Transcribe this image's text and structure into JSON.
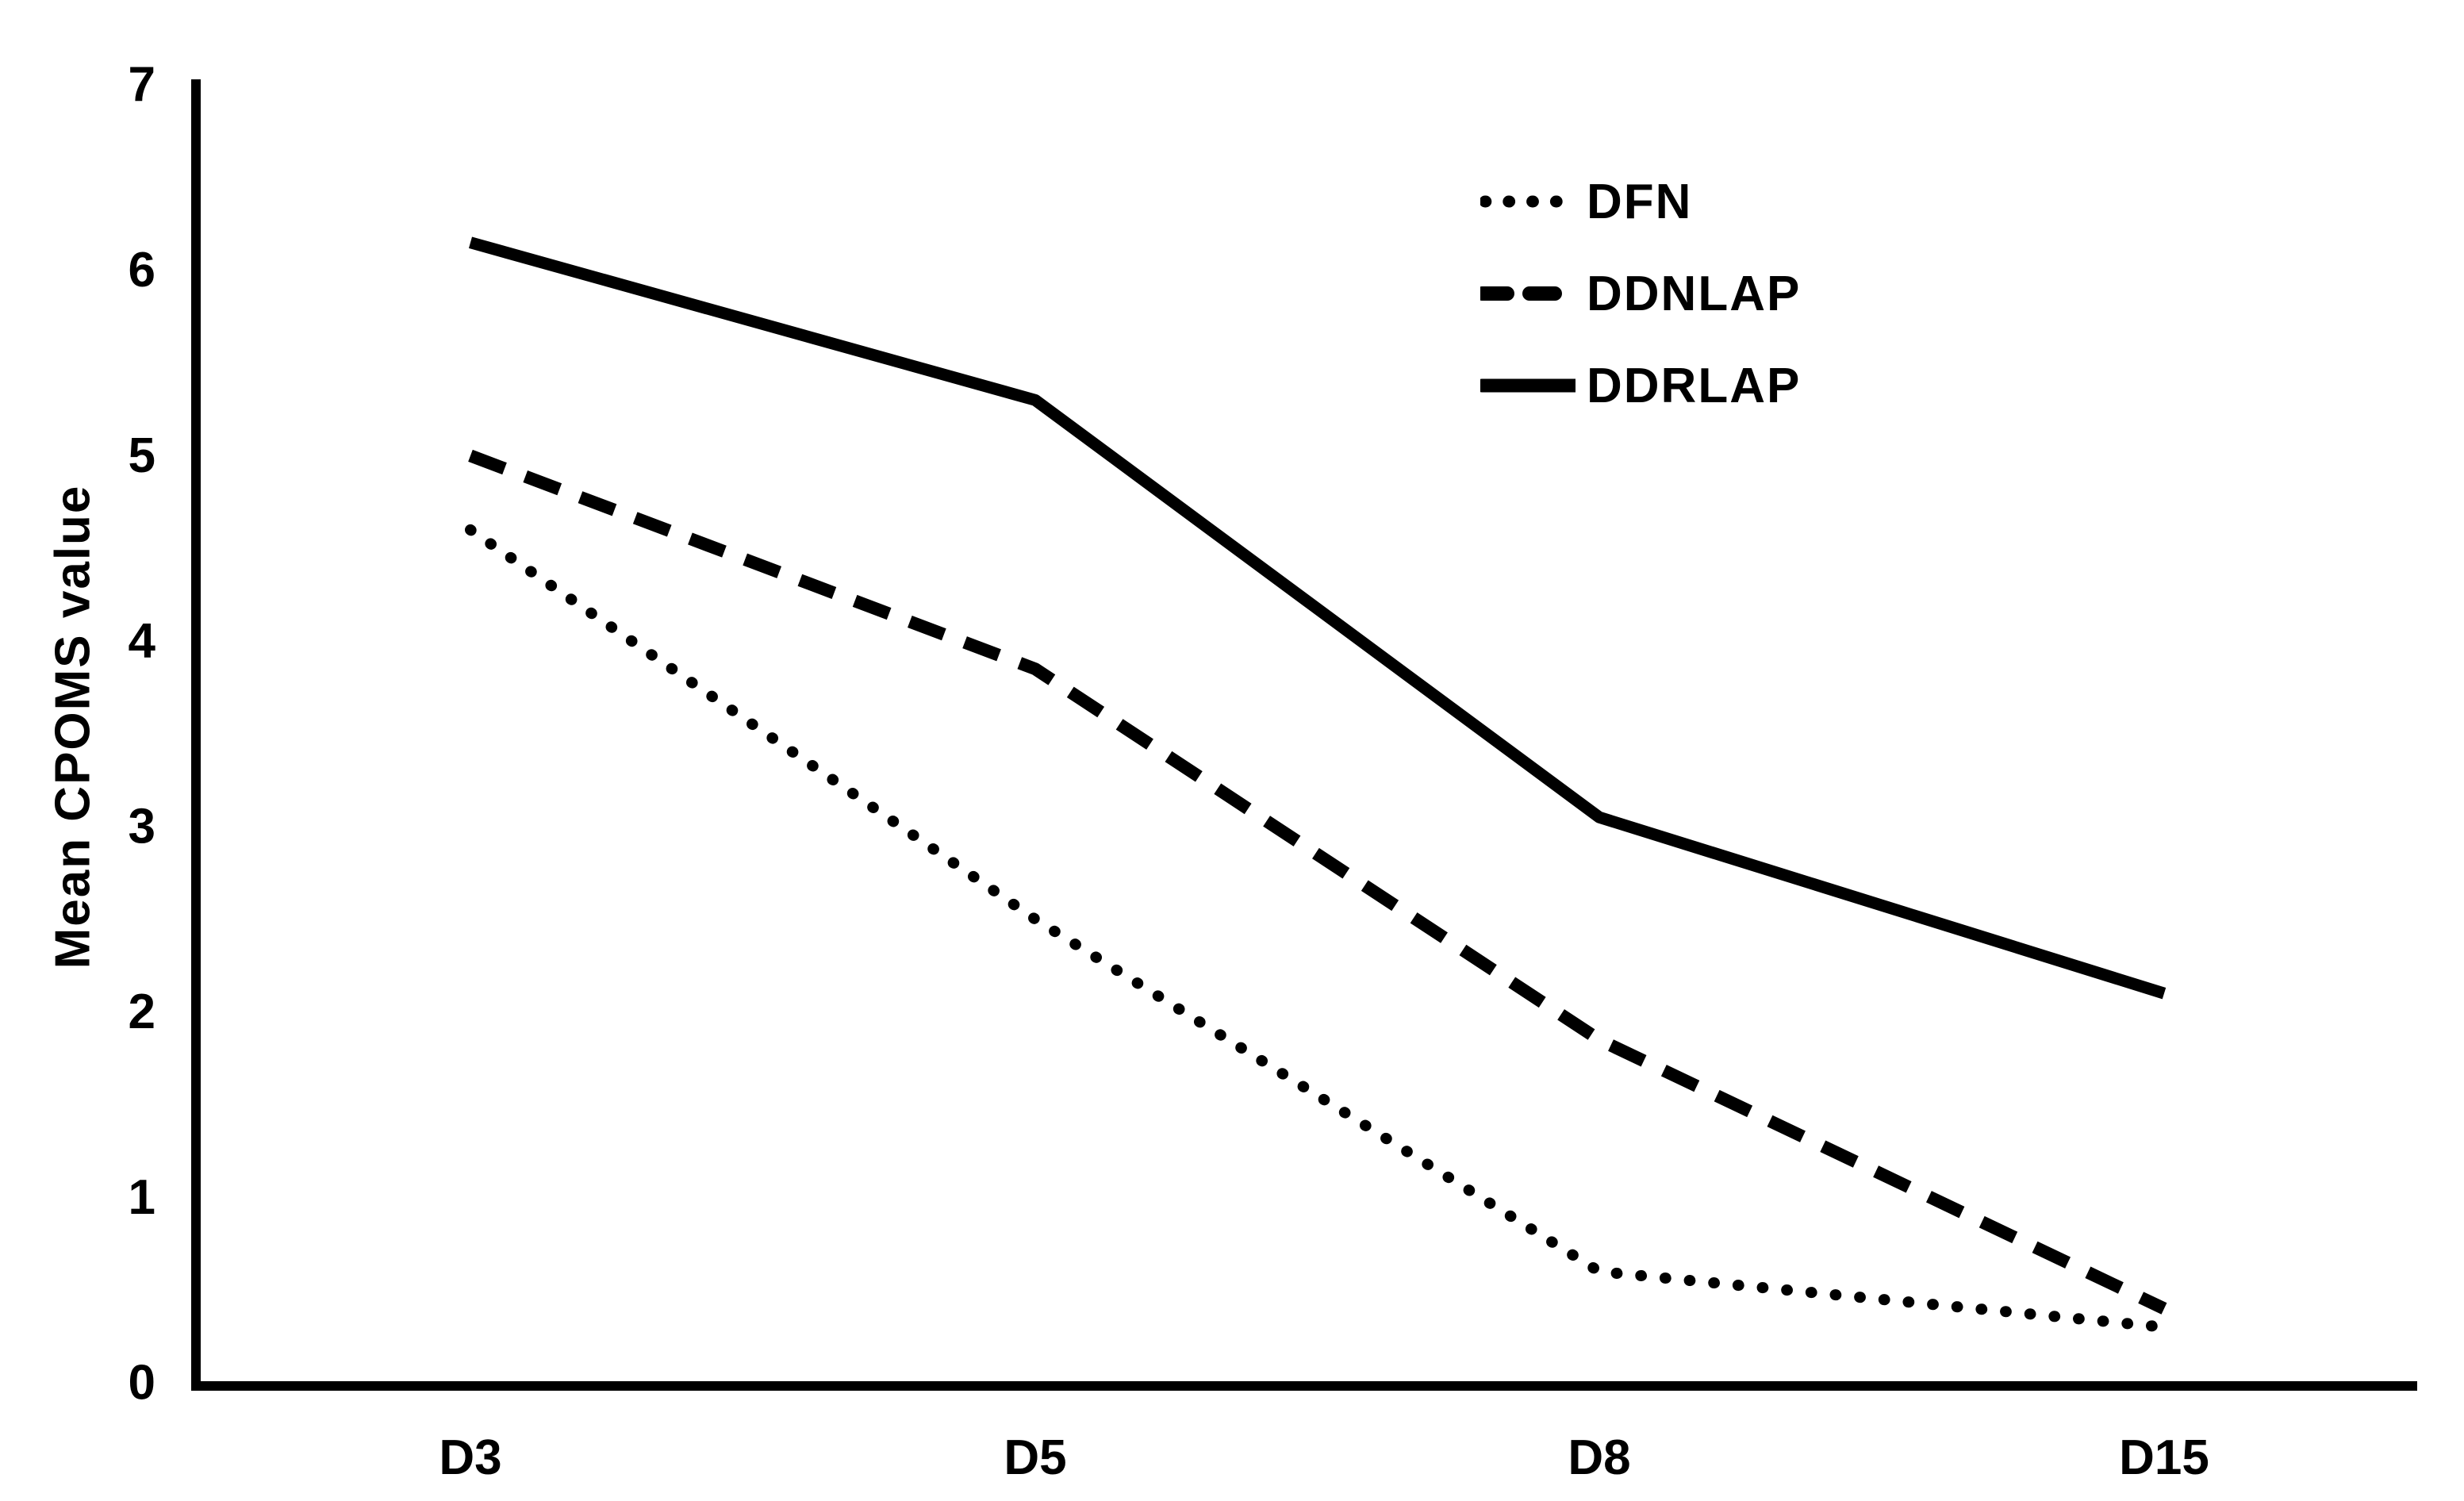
{
  "chart_data": {
    "type": "line",
    "title": "",
    "xlabel": "",
    "ylabel": "Mean CPOMS value",
    "categories": [
      "D3",
      "D5",
      "D8",
      "D15"
    ],
    "y_ticks": [
      0,
      1,
      2,
      3,
      4,
      5,
      6,
      7
    ],
    "ylim": [
      0,
      7
    ],
    "grid": false,
    "legend_position": "inside-top-right",
    "series": [
      {
        "name": "DFN",
        "style": "dotted",
        "color": "#000000",
        "values": [
          4.6,
          2.5,
          0.6,
          0.3
        ]
      },
      {
        "name": "DDNLAP",
        "style": "dashed",
        "color": "#000000",
        "values": [
          5.0,
          3.85,
          1.85,
          0.4
        ]
      },
      {
        "name": "DDRLAP",
        "style": "solid",
        "color": "#000000",
        "values": [
          6.15,
          5.3,
          3.05,
          2.1
        ]
      }
    ]
  },
  "colors": {
    "foreground": "#000000",
    "background": "#ffffff"
  }
}
